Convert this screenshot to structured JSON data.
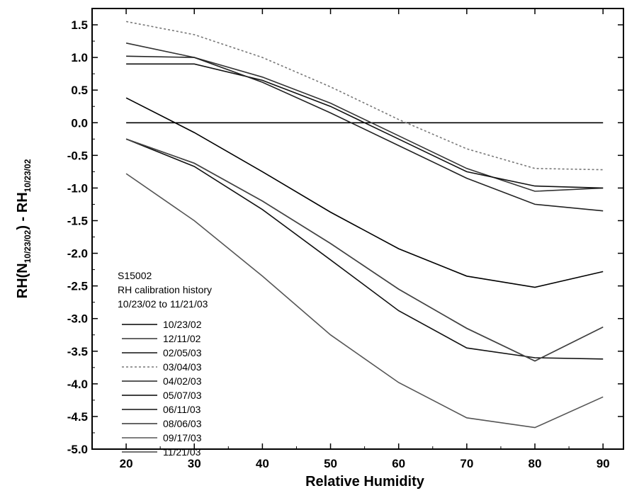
{
  "chart_data": {
    "type": "line",
    "xlabel": "Relative Humidity",
    "ylabel_main": "RH(N",
    "ylabel_sub1": "10/23/02",
    "ylabel_mid": ") - RH",
    "ylabel_sub2": "10/23/02",
    "xlim": [
      15,
      93
    ],
    "ylim": [
      -5.0,
      1.75
    ],
    "xticks": [
      20,
      30,
      40,
      50,
      60,
      70,
      80,
      90
    ],
    "xtick_labels": [
      "20",
      "30",
      "40",
      "50",
      "60",
      "70",
      "80",
      "90"
    ],
    "yticks": [
      1.5,
      1.0,
      0.5,
      0.0,
      -0.5,
      -1.0,
      -1.5,
      -2.0,
      -2.5,
      -3.0,
      -3.5,
      -4.0,
      -4.5,
      -5.0
    ],
    "ytick_labels": [
      "1.5",
      "1.0",
      "0.5",
      "0.0",
      "-0.5",
      "-1.0",
      "-1.5",
      "-2.0",
      "-2.5",
      "-3.0",
      "-3.5",
      "-4.0",
      "-4.5",
      "-5.0"
    ],
    "grid": false,
    "annotation": [
      "S15002",
      "RH calibration history",
      "10/23/02 to 11/21/03"
    ],
    "legend_position": "left",
    "x": [
      20,
      30,
      40,
      50,
      60,
      70,
      80,
      90
    ],
    "series": [
      {
        "name": "10/23/02",
        "color": "#000000",
        "dash": "",
        "values": [
          0.0,
          0.0,
          0.0,
          0.0,
          0.0,
          0.0,
          0.0,
          0.0
        ]
      },
      {
        "name": "12/11/02",
        "color": "#333333",
        "dash": "",
        "values": [
          1.22,
          1.0,
          0.7,
          0.3,
          -0.2,
          -0.7,
          -1.05,
          -1.0
        ]
      },
      {
        "name": "02/05/03",
        "color": "#111111",
        "dash": "",
        "values": [
          0.9,
          0.9,
          0.65,
          0.25,
          -0.25,
          -0.75,
          -0.97,
          -1.0
        ]
      },
      {
        "name": "03/04/03",
        "color": "#777777",
        "dash": "3,3",
        "values": [
          1.55,
          1.35,
          1.0,
          0.55,
          0.05,
          -0.4,
          -0.7,
          -0.72
        ]
      },
      {
        "name": "04/02/03",
        "color": "#222222",
        "dash": "",
        "values": [
          1.02,
          1.0,
          0.62,
          0.15,
          -0.35,
          -0.85,
          -1.25,
          -1.35
        ]
      },
      {
        "name": "05/07/03",
        "color": "#000000",
        "dash": "",
        "values": [
          0.38,
          -0.15,
          -0.75,
          -1.37,
          -1.93,
          -2.35,
          -2.52,
          -2.28
        ]
      },
      {
        "name": "06/11/03",
        "color": "#111111",
        "dash": "",
        "values": [
          -0.25,
          -0.67,
          -1.33,
          -2.1,
          -2.88,
          -3.45,
          -3.6,
          -3.62
        ]
      },
      {
        "name": "08/06/03",
        "color": "#333333",
        "dash": "",
        "values": [
          -0.25,
          -0.62,
          -1.2,
          -1.85,
          -2.55,
          -3.15,
          -3.65,
          -3.13
        ]
      },
      {
        "name": "09/17/03",
        "color": "#555555",
        "dash": "",
        "values": [
          -0.78,
          -1.5,
          -2.35,
          -3.25,
          -3.98,
          -4.52,
          -4.67,
          -4.2
        ]
      },
      {
        "name": "11/21/03",
        "color": "#444444",
        "dash": "",
        "values": [
          -0.25,
          -0.62,
          -1.2,
          -1.85,
          -2.55,
          -3.15,
          -3.65,
          -3.13
        ]
      }
    ]
  }
}
